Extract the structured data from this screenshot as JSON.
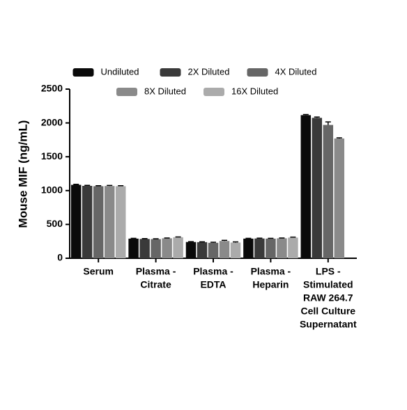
{
  "chart_data": {
    "type": "bar",
    "ylabel": "Mouse MIF (ng/mL)",
    "categories": [
      [
        "Serum"
      ],
      [
        "Plasma -",
        "Citrate"
      ],
      [
        "Plasma -",
        "EDTA"
      ],
      [
        "Plasma -",
        "Heparin"
      ],
      [
        "LPS -",
        "Stimulated",
        "RAW 264.7",
        "Cell Culture",
        "Supernatant"
      ]
    ],
    "series": [
      {
        "name": "Undiluted",
        "color": "#0a0a0a",
        "values": [
          1085,
          290,
          240,
          290,
          2115
        ],
        "errors": [
          8,
          5,
          5,
          5,
          10
        ]
      },
      {
        "name": "2X Diluted",
        "color": "#3a3a3a",
        "values": [
          1070,
          285,
          238,
          292,
          2075
        ],
        "errors": [
          8,
          5,
          5,
          5,
          12
        ]
      },
      {
        "name": "4X Diluted",
        "color": "#666666",
        "values": [
          1065,
          283,
          228,
          290,
          1970
        ],
        "errors": [
          8,
          5,
          8,
          5,
          45
        ]
      },
      {
        "name": "8X Diluted",
        "color": "#8a8a8a",
        "values": [
          1068,
          295,
          255,
          295,
          1770
        ],
        "errors": [
          8,
          5,
          10,
          5,
          10
        ]
      },
      {
        "name": "16X Diluted",
        "color": "#ababab",
        "values": [
          1065,
          310,
          232,
          305,
          null
        ],
        "errors": [
          8,
          5,
          10,
          8,
          null
        ]
      }
    ],
    "ylim": [
      0,
      2500
    ],
    "yticks": [
      0,
      500,
      1000,
      1500,
      2000,
      2500
    ]
  }
}
